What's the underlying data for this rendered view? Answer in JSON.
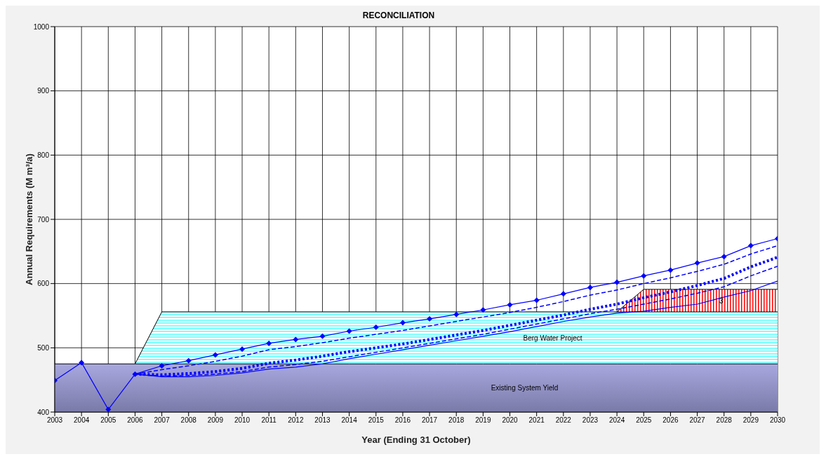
{
  "chart_data": {
    "type": "line",
    "title": "RECONCILIATION",
    "xlabel": "Year (Ending 31 October)",
    "ylabel": "Annual Requirements (M m³/a)",
    "x": [
      2003,
      2004,
      2005,
      2006,
      2007,
      2008,
      2009,
      2010,
      2011,
      2012,
      2013,
      2014,
      2015,
      2016,
      2017,
      2018,
      2019,
      2020,
      2021,
      2022,
      2023,
      2024,
      2025,
      2026,
      2027,
      2028,
      2029,
      2030
    ],
    "xlim": [
      2003,
      2030
    ],
    "xticks": [
      2003,
      2004,
      2005,
      2006,
      2007,
      2008,
      2009,
      2010,
      2011,
      2012,
      2013,
      2014,
      2015,
      2016,
      2017,
      2018,
      2019,
      2020,
      2021,
      2022,
      2023,
      2024,
      2025,
      2026,
      2027,
      2028,
      2029,
      2030
    ],
    "ylim": [
      400,
      1000
    ],
    "yticks": [
      400,
      500,
      600,
      700,
      800,
      900,
      1000
    ],
    "grid": true,
    "legend": false,
    "series": [
      {
        "type": "area",
        "name": "Existing System Yield",
        "color": "#a8a8e0",
        "values": [
          475,
          475,
          475,
          475,
          475,
          475,
          475,
          475,
          475,
          475,
          475,
          475,
          475,
          475,
          475,
          475,
          475,
          475,
          475,
          475,
          475,
          475,
          475,
          475,
          475,
          475,
          475,
          475
        ]
      },
      {
        "type": "area",
        "name": "Berg Water Project",
        "color": "#80ffff",
        "values": [
          null,
          null,
          null,
          475,
          556,
          556,
          556,
          556,
          556,
          556,
          556,
          556,
          556,
          556,
          556,
          556,
          556,
          556,
          556,
          556,
          556,
          556,
          556,
          556,
          556,
          556,
          556,
          556
        ]
      },
      {
        "type": "area",
        "name": "3",
        "color": "#ff0000",
        "values": [
          null,
          null,
          null,
          null,
          null,
          null,
          null,
          null,
          null,
          null,
          null,
          null,
          null,
          null,
          null,
          null,
          null,
          null,
          null,
          null,
          null,
          556,
          591,
          591,
          591,
          591,
          591,
          591
        ]
      },
      {
        "color": "#0000ff",
        "marker": "diamond",
        "line_style": "solid",
        "values": [
          449,
          477,
          404,
          459,
          472,
          480,
          489,
          498,
          507,
          513,
          518,
          526,
          532,
          539,
          545,
          552,
          559,
          567,
          574,
          584,
          594,
          602,
          612,
          621,
          632,
          642,
          659,
          670
        ]
      },
      {
        "color": "#0000ff",
        "marker": "none",
        "line_style": "dashed",
        "values": [
          null,
          null,
          null,
          459,
          466,
          472,
          479,
          487,
          497,
          502,
          508,
          515,
          521,
          527,
          534,
          541,
          548,
          555,
          563,
          572,
          582,
          590,
          600,
          609,
          619,
          630,
          646,
          659
        ]
      },
      {
        "color": "#0000ff",
        "marker": "none",
        "line_style": "dotted",
        "values": [
          null,
          null,
          null,
          459,
          458,
          460,
          463,
          468,
          476,
          481,
          487,
          494,
          500,
          506,
          513,
          520,
          527,
          535,
          543,
          551,
          560,
          568,
          578,
          587,
          597,
          608,
          626,
          641
        ]
      },
      {
        "color": "#0000ff",
        "marker": "none",
        "line_style": "dashed",
        "values": [
          null,
          null,
          null,
          459,
          456,
          457,
          459,
          463,
          470,
          474,
          479,
          486,
          493,
          500,
          507,
          514,
          521,
          529,
          537,
          545,
          553,
          560,
          568,
          576,
          585,
          595,
          612,
          627
        ]
      },
      {
        "color": "#0000ff",
        "marker": "none",
        "line_style": "solid",
        "values": [
          null,
          null,
          null,
          459,
          455,
          455,
          457,
          461,
          467,
          470,
          475,
          483,
          490,
          497,
          504,
          511,
          518,
          525,
          533,
          541,
          548,
          554,
          557,
          563,
          568,
          579,
          589,
          604
        ]
      }
    ]
  }
}
